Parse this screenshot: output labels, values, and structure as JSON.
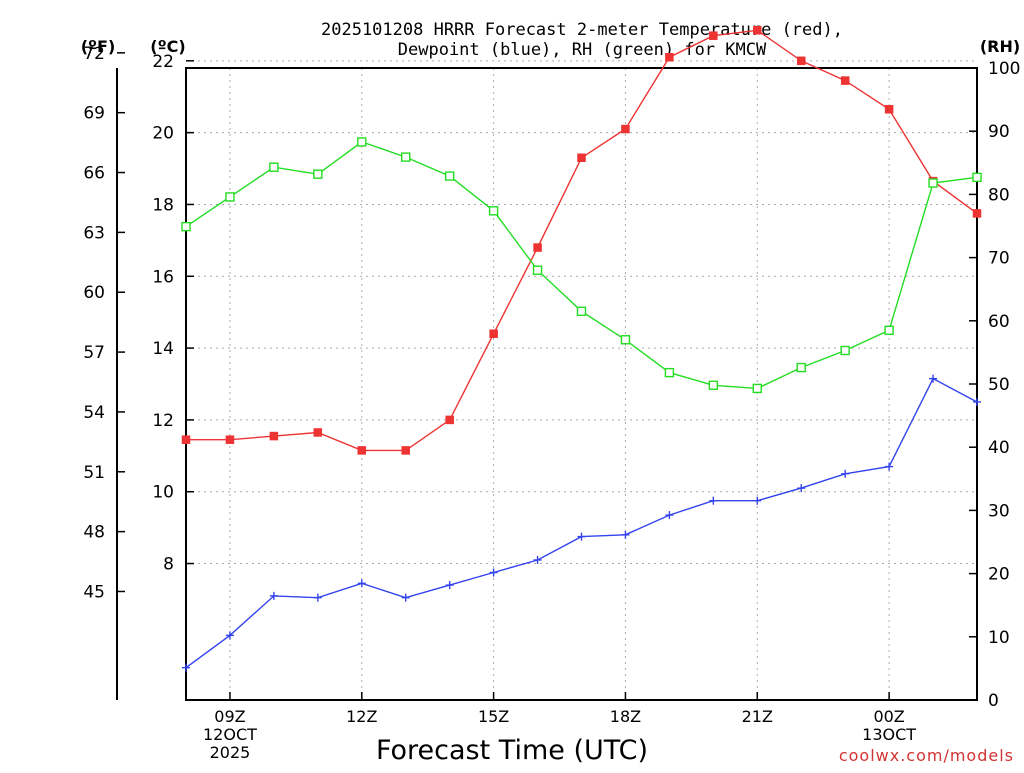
{
  "header": {
    "title_line1": "2025101208 HRRR Forecast 2-meter Temperature (red),",
    "title_line2": "Dewpoint (blue), RH (green) for KMCW",
    "unit_f": "(ºF)",
    "unit_c": "(ºC)",
    "unit_rh": "(RH)"
  },
  "footer": {
    "xlabel": "Forecast Time (UTC)",
    "watermark": "coolwx.com/models"
  },
  "colors": {
    "temperature": "#ee3333",
    "dewpoint": "#3344ee",
    "rh": "#22dd22",
    "grid": "#aaaaaa",
    "axis": "#000000"
  },
  "chart_data": {
    "type": "line",
    "x_hours": [
      8,
      9,
      10,
      11,
      12,
      13,
      14,
      15,
      16,
      17,
      18,
      19,
      20,
      21,
      22,
      23,
      24,
      25,
      26
    ],
    "xlim": [
      8,
      26
    ],
    "xticks": [
      {
        "hour": 9,
        "lines": [
          "09Z",
          "12OCT",
          "2025"
        ]
      },
      {
        "hour": 12,
        "lines": [
          "12Z"
        ]
      },
      {
        "hour": 15,
        "lines": [
          "15Z"
        ]
      },
      {
        "hour": 18,
        "lines": [
          "18Z"
        ]
      },
      {
        "hour": 21,
        "lines": [
          "21Z"
        ]
      },
      {
        "hour": 24,
        "lines": [
          "00Z",
          "13OCT"
        ]
      }
    ],
    "ylim_c": [
      4.2,
      21.8
    ],
    "yticks_c": [
      "8",
      "10",
      "12",
      "14",
      "16",
      "18",
      "20",
      "22"
    ],
    "yticks_f": [
      "45",
      "48",
      "51",
      "54",
      "57",
      "60",
      "63",
      "66",
      "69",
      "72"
    ],
    "ylim_rh": [
      0,
      100
    ],
    "yticks_rh": [
      "0",
      "10",
      "20",
      "30",
      "40",
      "50",
      "60",
      "70",
      "80",
      "90",
      "100"
    ],
    "series": [
      {
        "name": "2-meter Temperature",
        "axis": "c",
        "color": "#ee3333",
        "marker": "filled-square",
        "values": [
          11.45,
          11.45,
          11.55,
          11.65,
          11.15,
          11.15,
          12.0,
          14.4,
          16.8,
          19.3,
          20.1,
          22.1,
          22.7,
          22.85,
          22.0,
          21.45,
          20.65,
          18.65,
          17.75
        ]
      },
      {
        "name": "Dewpoint",
        "axis": "c",
        "color": "#3344ee",
        "marker": "plus",
        "values": [
          5.1,
          6.0,
          7.1,
          7.05,
          7.45,
          7.05,
          7.4,
          7.75,
          8.1,
          8.75,
          8.8,
          9.35,
          9.75,
          9.75,
          10.1,
          10.5,
          10.7,
          13.15,
          12.5
        ]
      },
      {
        "name": "Relative Humidity",
        "axis": "rh",
        "color": "#22dd22",
        "marker": "open-square",
        "values": [
          74.9,
          79.6,
          84.3,
          83.2,
          88.3,
          85.9,
          82.9,
          77.4,
          68.0,
          61.5,
          57.0,
          51.8,
          49.8,
          49.3,
          52.6,
          55.3,
          58.5,
          81.8,
          82.7
        ]
      }
    ]
  }
}
